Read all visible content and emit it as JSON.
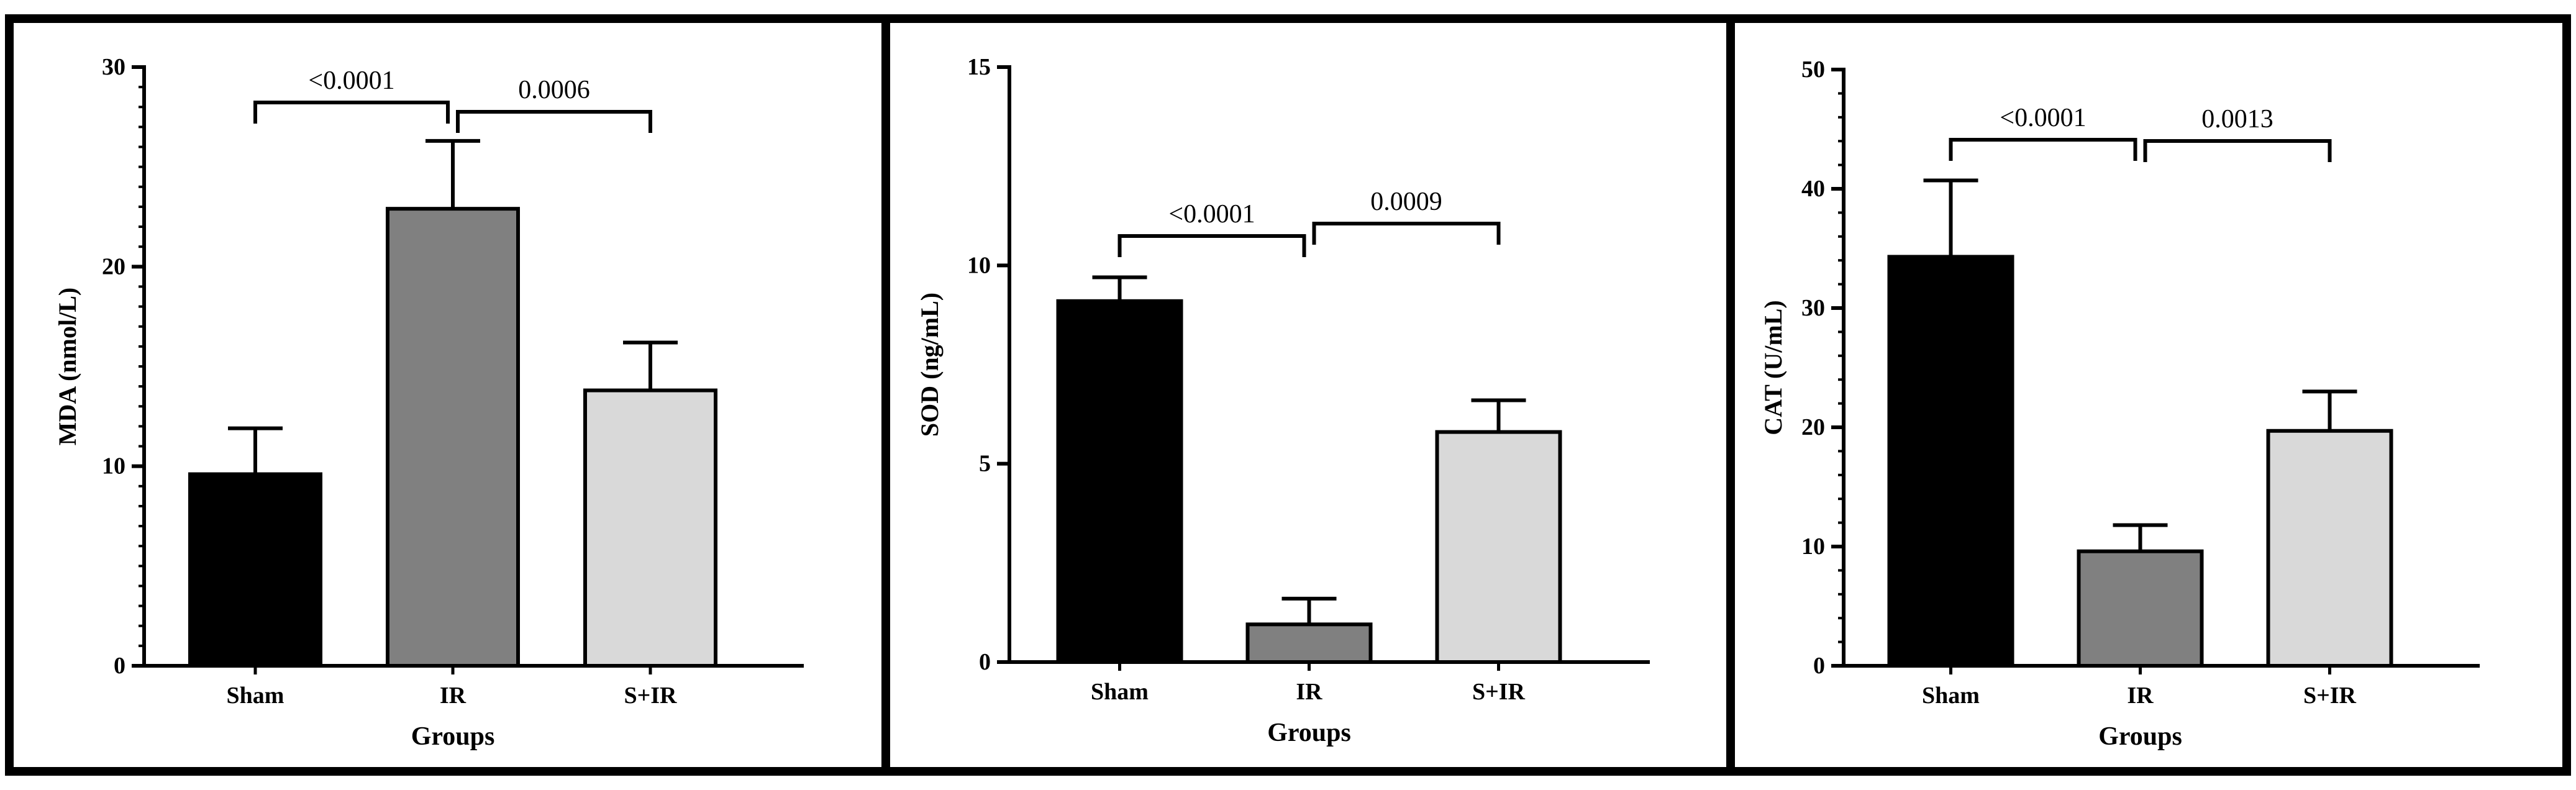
{
  "chart_data": [
    {
      "type": "bar",
      "panel": "MDA",
      "categories": [
        "Sham",
        "IR",
        "S+IR"
      ],
      "values": [
        9.6,
        22.9,
        13.8
      ],
      "errors": [
        2.3,
        3.4,
        2.4
      ],
      "colors": [
        "#000000",
        "#808080",
        "#d9d9d9"
      ],
      "xlabel": "Groups",
      "ylabel": "MDA (nmol/L)",
      "ylim": [
        0,
        30
      ],
      "yticks": [
        0,
        10,
        20,
        30
      ],
      "minor_tick_step": 1,
      "comparisons": [
        {
          "from": 0,
          "to": 1,
          "label": "<0.0001"
        },
        {
          "from": 1,
          "to": 2,
          "label": "0.0006"
        }
      ]
    },
    {
      "type": "bar",
      "panel": "SOD",
      "categories": [
        "Sham",
        "IR",
        "S+IR"
      ],
      "values": [
        9.1,
        0.95,
        5.8
      ],
      "errors": [
        0.6,
        0.65,
        0.8
      ],
      "colors": [
        "#000000",
        "#808080",
        "#d9d9d9"
      ],
      "xlabel": "Groups",
      "ylabel": "SOD (ng/mL)",
      "ylim": [
        0,
        15
      ],
      "yticks": [
        0,
        5,
        10,
        15
      ],
      "minor_tick_step": 0,
      "comparisons": [
        {
          "from": 0,
          "to": 1,
          "label": "<0.0001"
        },
        {
          "from": 1,
          "to": 2,
          "label": "0.0009"
        }
      ]
    },
    {
      "type": "bar",
      "panel": "CAT",
      "categories": [
        "Sham",
        "IR",
        "S+IR"
      ],
      "values": [
        34.3,
        9.6,
        19.7
      ],
      "errors": [
        6.4,
        2.2,
        3.3
      ],
      "colors": [
        "#000000",
        "#808080",
        "#d9d9d9"
      ],
      "xlabel": "Groups",
      "ylabel": "CAT (U/mL)",
      "ylim": [
        0,
        50
      ],
      "yticks": [
        0,
        10,
        20,
        30,
        40,
        50
      ],
      "minor_tick_step": 2,
      "comparisons": [
        {
          "from": 0,
          "to": 1,
          "label": "<0.0001"
        },
        {
          "from": 1,
          "to": 2,
          "label": "0.0013"
        }
      ]
    }
  ]
}
